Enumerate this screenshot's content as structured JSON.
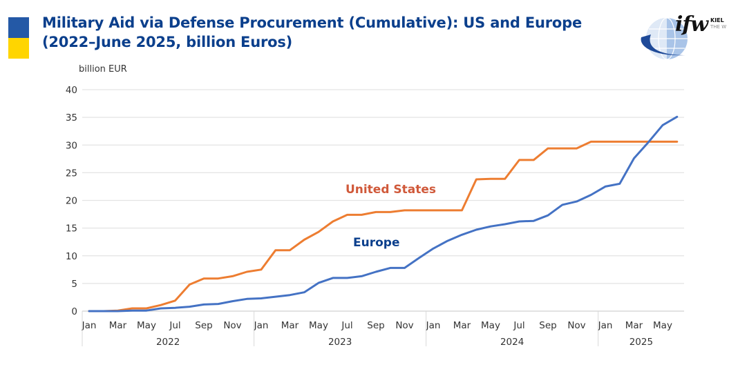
{
  "header": {
    "title_line1": "Military Aid via Defense Procurement (Cumulative): US and Europe",
    "title_line2": "(2022–June 2025, billion Euros)",
    "flag_colors": [
      "#2459a6",
      "#ffd500"
    ]
  },
  "logo": {
    "mark": "ifw",
    "line1": "KIEL",
    "line2": "THE W"
  },
  "chart_data": {
    "type": "line",
    "title": "Military Aid via Defense Procurement (Cumulative): US and Europe (2022–June 2025, billion Euros)",
    "ylabel": "billion EUR",
    "xlabel": "",
    "ylim": [
      0,
      40
    ],
    "yticks": [
      0,
      5,
      10,
      15,
      20,
      25,
      30,
      35,
      40
    ],
    "grid": true,
    "legend": "inline-labels",
    "x": [
      "2022-01",
      "2022-02",
      "2022-03",
      "2022-04",
      "2022-05",
      "2022-06",
      "2022-07",
      "2022-08",
      "2022-09",
      "2022-10",
      "2022-11",
      "2022-12",
      "2023-01",
      "2023-02",
      "2023-03",
      "2023-04",
      "2023-05",
      "2023-06",
      "2023-07",
      "2023-08",
      "2023-09",
      "2023-10",
      "2023-11",
      "2023-12",
      "2024-01",
      "2024-02",
      "2024-03",
      "2024-04",
      "2024-05",
      "2024-06",
      "2024-07",
      "2024-08",
      "2024-09",
      "2024-10",
      "2024-11",
      "2024-12",
      "2025-01",
      "2025-02",
      "2025-03",
      "2025-04",
      "2025-05",
      "2025-06"
    ],
    "month_tick_labels": [
      {
        "index": 0,
        "label": "Jan"
      },
      {
        "index": 2,
        "label": "Mar"
      },
      {
        "index": 4,
        "label": "May"
      },
      {
        "index": 6,
        "label": "Jul"
      },
      {
        "index": 8,
        "label": "Sep"
      },
      {
        "index": 10,
        "label": "Nov"
      },
      {
        "index": 12,
        "label": "Jan"
      },
      {
        "index": 14,
        "label": "Mar"
      },
      {
        "index": 16,
        "label": "May"
      },
      {
        "index": 18,
        "label": "Jul"
      },
      {
        "index": 20,
        "label": "Sep"
      },
      {
        "index": 22,
        "label": "Nov"
      },
      {
        "index": 24,
        "label": "Jan"
      },
      {
        "index": 26,
        "label": "Mar"
      },
      {
        "index": 28,
        "label": "May"
      },
      {
        "index": 30,
        "label": "Jul"
      },
      {
        "index": 32,
        "label": "Sep"
      },
      {
        "index": 34,
        "label": "Nov"
      },
      {
        "index": 36,
        "label": "Jan"
      },
      {
        "index": 38,
        "label": "Mar"
      },
      {
        "index": 40,
        "label": "May"
      }
    ],
    "year_groups": [
      {
        "label": "2022",
        "start": 0,
        "end": 11
      },
      {
        "label": "2023",
        "start": 12,
        "end": 23
      },
      {
        "label": "2024",
        "start": 24,
        "end": 35
      },
      {
        "label": "2025",
        "start": 36,
        "end": 41
      }
    ],
    "series": [
      {
        "name": "United States",
        "color": "#ed7d31",
        "label_color": "#d0593a",
        "label_anchor_index": 22,
        "label_anchor_value": 21.3,
        "values": [
          0,
          0,
          0.1,
          0.5,
          0.5,
          1.1,
          1.9,
          4.8,
          5.9,
          5.9,
          6.3,
          7.1,
          7.5,
          11.0,
          11.0,
          12.9,
          14.3,
          16.2,
          17.4,
          17.4,
          17.9,
          17.9,
          18.2,
          18.2,
          18.2,
          18.2,
          18.2,
          23.8,
          23.9,
          23.9,
          27.3,
          27.3,
          29.4,
          29.4,
          29.4,
          30.6,
          30.6,
          30.6,
          30.6,
          30.6,
          30.6,
          30.6
        ]
      },
      {
        "name": "Europe",
        "color": "#4472c4",
        "label_color": "#0b3f8c",
        "label_anchor_index": 21,
        "label_anchor_value": 11.7,
        "values": [
          0,
          0,
          0,
          0.1,
          0.1,
          0.5,
          0.6,
          0.8,
          1.2,
          1.3,
          1.8,
          2.2,
          2.3,
          2.6,
          2.9,
          3.4,
          5.1,
          6.0,
          6.0,
          6.3,
          7.1,
          7.8,
          7.8,
          9.6,
          11.3,
          12.7,
          13.8,
          14.7,
          15.3,
          15.7,
          16.2,
          16.3,
          17.3,
          19.2,
          19.8,
          21.0,
          22.5,
          23.0,
          27.6,
          30.5,
          33.6,
          35.1
        ]
      }
    ]
  }
}
